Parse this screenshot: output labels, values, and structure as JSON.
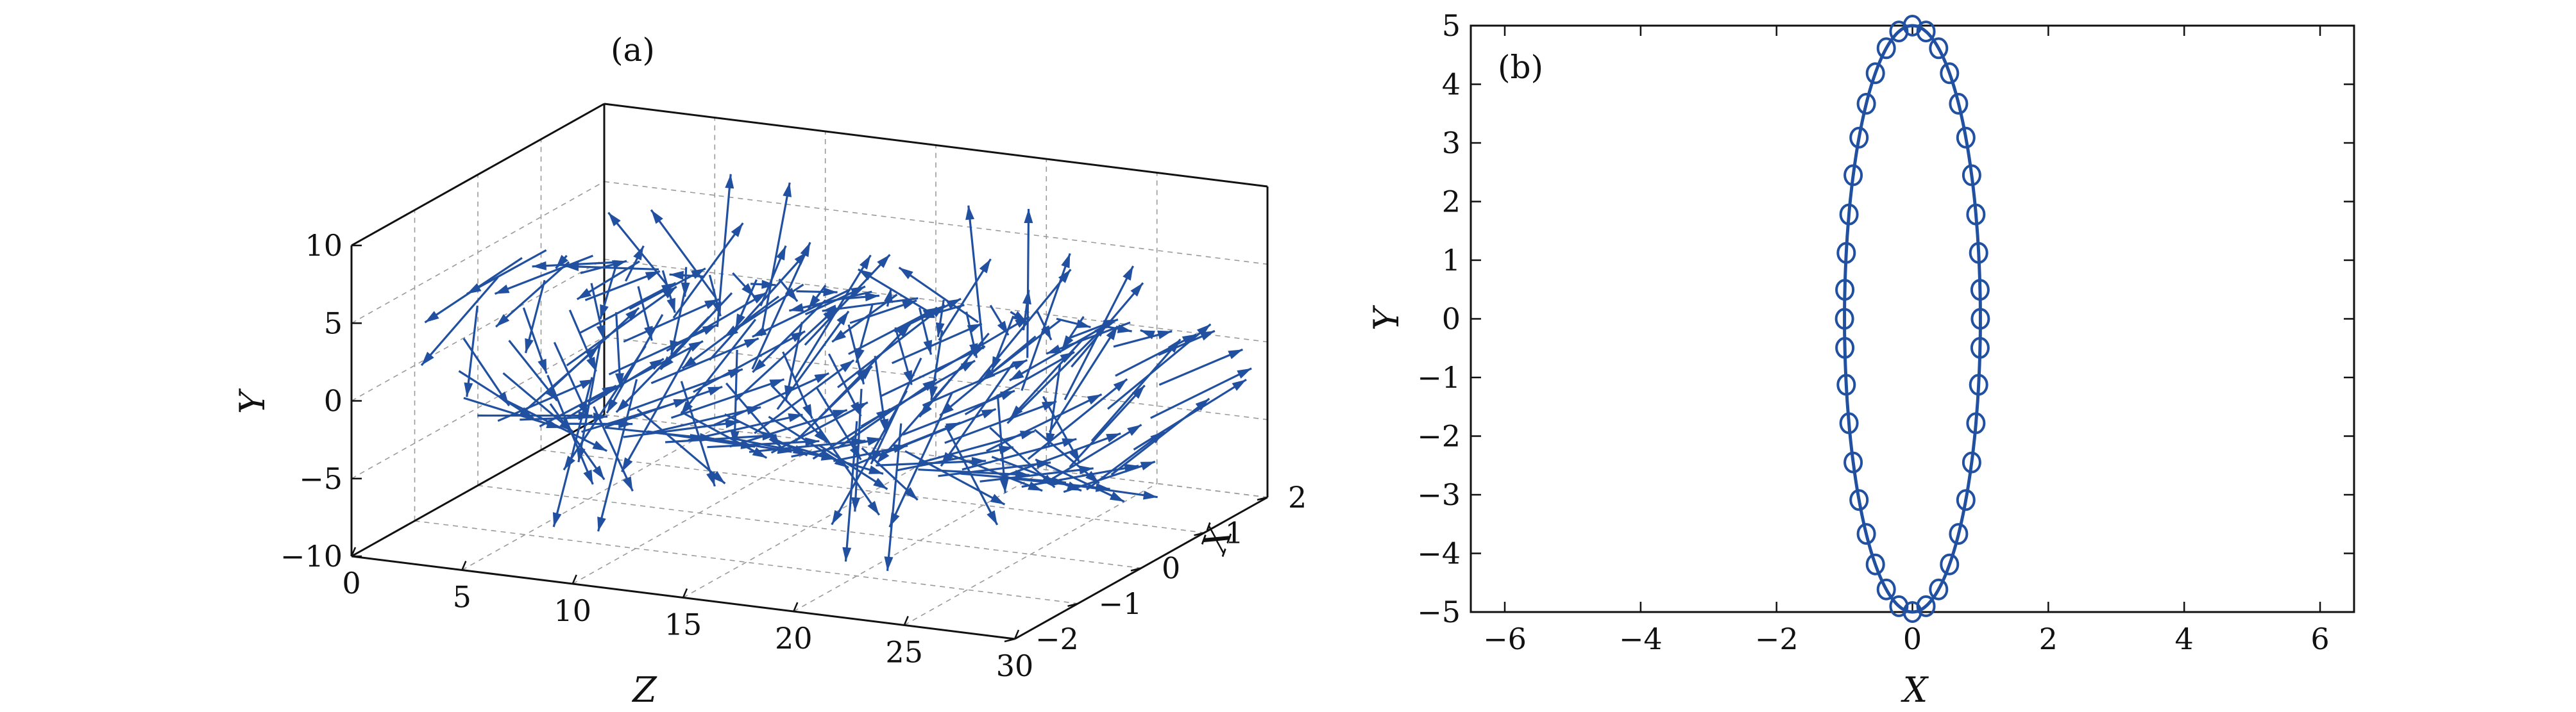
{
  "chart_data": [
    {
      "panel_label": "(a)",
      "type": "quiver3d",
      "xlabel": "Z",
      "ylabel": "Y",
      "zlabel": "X",
      "z_range": [
        0,
        30
      ],
      "y_range": [
        -10,
        10
      ],
      "x_range": [
        -2,
        2
      ],
      "z_ticks": [
        "0",
        "5",
        "10",
        "15",
        "20",
        "25",
        "30"
      ],
      "y_ticks": [
        "−10",
        "−5",
        "0",
        "5",
        "10"
      ],
      "x_ticks": [
        "−2",
        "−1",
        "0",
        "1",
        "2"
      ],
      "ring": {
        "semi_axis_x": 1,
        "semi_axis_y": 5
      },
      "ring_positions_z": [
        2,
        4,
        6,
        8,
        10,
        12,
        14,
        16,
        18,
        20,
        22,
        24,
        26,
        28
      ],
      "arrows_per_ring": 16,
      "arrow_length": 3.5,
      "grid": true,
      "color": "#2150a0"
    },
    {
      "panel_label": "(b)",
      "type": "line",
      "xlabel": "X",
      "ylabel": "Y",
      "xlim": [
        -6.5,
        6.5
      ],
      "ylim": [
        -5,
        5
      ],
      "x_ticks": [
        "−6",
        "−4",
        "−2",
        "0",
        "2",
        "4",
        "6"
      ],
      "y_ticks": [
        "−5",
        "−4",
        "−3",
        "−2",
        "−1",
        "0",
        "1",
        "2",
        "3",
        "4",
        "5"
      ],
      "series": [
        {
          "style": "solid-line",
          "shape": "ellipse",
          "semi_axis_x": 1,
          "semi_axis_y": 5
        },
        {
          "style": "circle-markers",
          "points": [
            [
              0.0,
              5.0
            ],
            [
              0.199,
              4.9
            ],
            [
              0.385,
              4.614
            ],
            [
              0.546,
              4.188
            ],
            [
              0.679,
              3.668
            ],
            [
              0.786,
              3.09
            ],
            [
              0.872,
              2.449
            ],
            [
              0.934,
              1.78
            ],
            [
              0.974,
              1.125
            ],
            [
              0.995,
              0.495
            ],
            [
              1.0,
              0.0
            ],
            [
              0.995,
              -0.495
            ],
            [
              0.974,
              -1.125
            ],
            [
              0.934,
              -1.78
            ],
            [
              0.872,
              -2.449
            ],
            [
              0.786,
              -3.09
            ],
            [
              0.679,
              -3.668
            ],
            [
              0.546,
              -4.188
            ],
            [
              0.385,
              -4.614
            ],
            [
              0.199,
              -4.9
            ],
            [
              0.0,
              -5.0
            ],
            [
              -0.199,
              -4.9
            ],
            [
              -0.385,
              -4.614
            ],
            [
              -0.546,
              -4.188
            ],
            [
              -0.679,
              -3.668
            ],
            [
              -0.786,
              -3.09
            ],
            [
              -0.872,
              -2.449
            ],
            [
              -0.934,
              -1.78
            ],
            [
              -0.974,
              -1.125
            ],
            [
              -0.995,
              -0.495
            ],
            [
              -1.0,
              0.0
            ],
            [
              -0.995,
              0.495
            ],
            [
              -0.974,
              1.125
            ],
            [
              -0.934,
              1.78
            ],
            [
              -0.872,
              2.449
            ],
            [
              -0.786,
              3.09
            ],
            [
              -0.679,
              3.668
            ],
            [
              -0.546,
              4.188
            ],
            [
              -0.385,
              4.614
            ],
            [
              -0.199,
              4.9
            ]
          ]
        }
      ],
      "grid": false,
      "color": "#2150a0"
    }
  ]
}
